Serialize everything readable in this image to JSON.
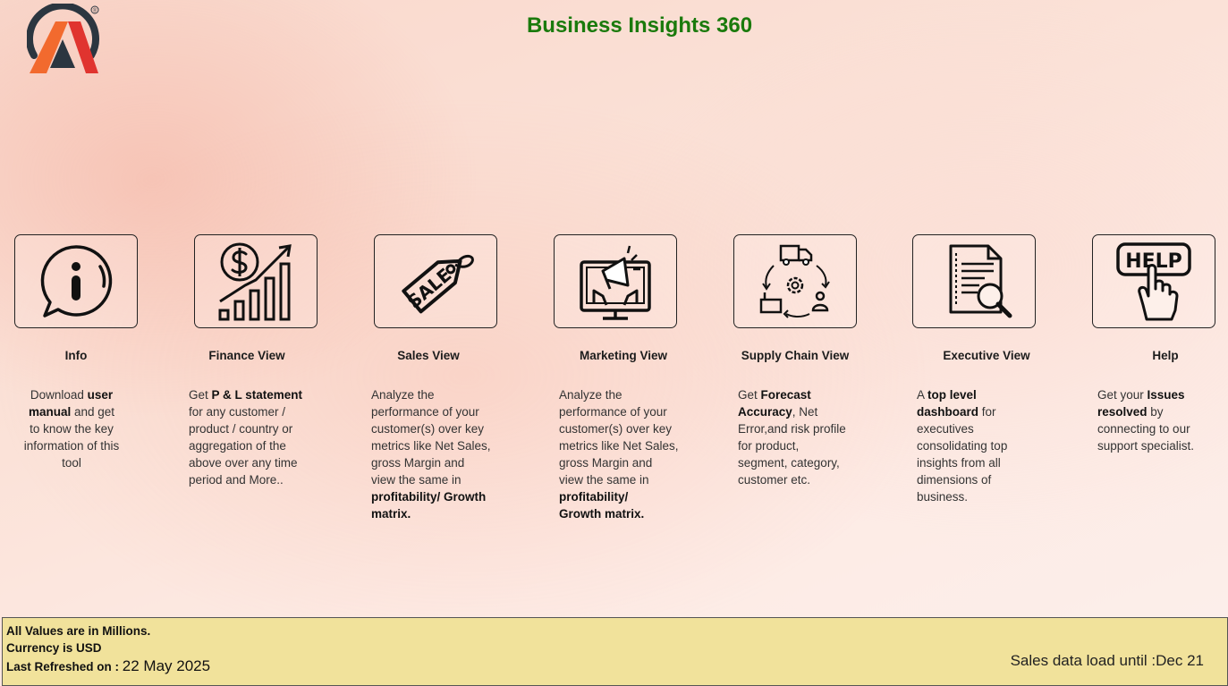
{
  "header": {
    "title": "Business Insights 360",
    "registered_mark": "®",
    "logo_icon": "atliq-logo-icon"
  },
  "cards": [
    {
      "id": "info",
      "label": "Info",
      "icon": "info-icon",
      "desc": [
        {
          "t": "Download "
        },
        {
          "t": "user",
          "b": true
        },
        {
          "t": "\n"
        },
        {
          "t": "manual",
          "b": true
        },
        {
          "t": " and get\nto know the key\ninformation of this\ntool"
        }
      ]
    },
    {
      "id": "finance",
      "label": "Finance View",
      "icon": "finance-growth-icon",
      "desc": [
        {
          "t": "Get "
        },
        {
          "t": "P & L statement",
          "b": true
        },
        {
          "t": "\nfor any customer /\nproduct / country or\naggregation of the\nabove over any time\nperiod and More.."
        }
      ]
    },
    {
      "id": "sales",
      "label": "Sales View",
      "icon": "sale-tag-icon",
      "desc": [
        {
          "t": "Analyze the\nperformance of your\ncustomer(s) over key\nmetrics like Net Sales,\ngross Margin and\nview the same in\n"
        },
        {
          "t": "profitability/ Growth\nmatrix.",
          "b": true
        }
      ]
    },
    {
      "id": "marketing",
      "label": "Marketing View",
      "icon": "marketing-megaphone-icon",
      "desc": [
        {
          "t": "Analyze the\nperformance of your\ncustomer(s) over key\nmetrics like Net Sales,\ngross Margin and\nview the same in\n"
        },
        {
          "t": "profitability/\nGrowth matrix.",
          "b": true
        }
      ]
    },
    {
      "id": "supply",
      "label": "Supply Chain View",
      "icon": "supply-chain-cycle-icon",
      "desc": [
        {
          "t": "Get "
        },
        {
          "t": "Forecast\nAccuracy",
          "b": true
        },
        {
          "t": ", Net\nError,and risk profile\nfor product,\nsegment, category,\ncustomer etc."
        }
      ]
    },
    {
      "id": "executive",
      "label": "Executive View",
      "icon": "executive-report-icon",
      "desc": [
        {
          "t": "A "
        },
        {
          "t": "top level\ndashboard",
          "b": true
        },
        {
          "t": " for\nexecutives\nconsolidating top\ninsights from all\ndimensions of\nbusiness."
        }
      ]
    },
    {
      "id": "help",
      "label": "Help",
      "icon": "help-hand-icon",
      "icon_text": "HELP",
      "desc": [
        {
          "t": "Get your "
        },
        {
          "t": "Issues\nresolved",
          "b": true
        },
        {
          "t": " by\nconnecting to our\nsupport specialist."
        }
      ]
    }
  ],
  "footer": {
    "values_note": "All Values are in Millions.",
    "currency_note": "Currency is USD",
    "refresh_label": "Last Refreshed on :",
    "refresh_date": "22 May 2025",
    "sales_load": "Sales data load until :Dec 21"
  },
  "colors": {
    "title": "#1a7a0c",
    "footer_bg": "#f1e29b",
    "logo_dark": "#2b3640",
    "logo_orange": "#f26a2e",
    "logo_red": "#e0342f"
  }
}
